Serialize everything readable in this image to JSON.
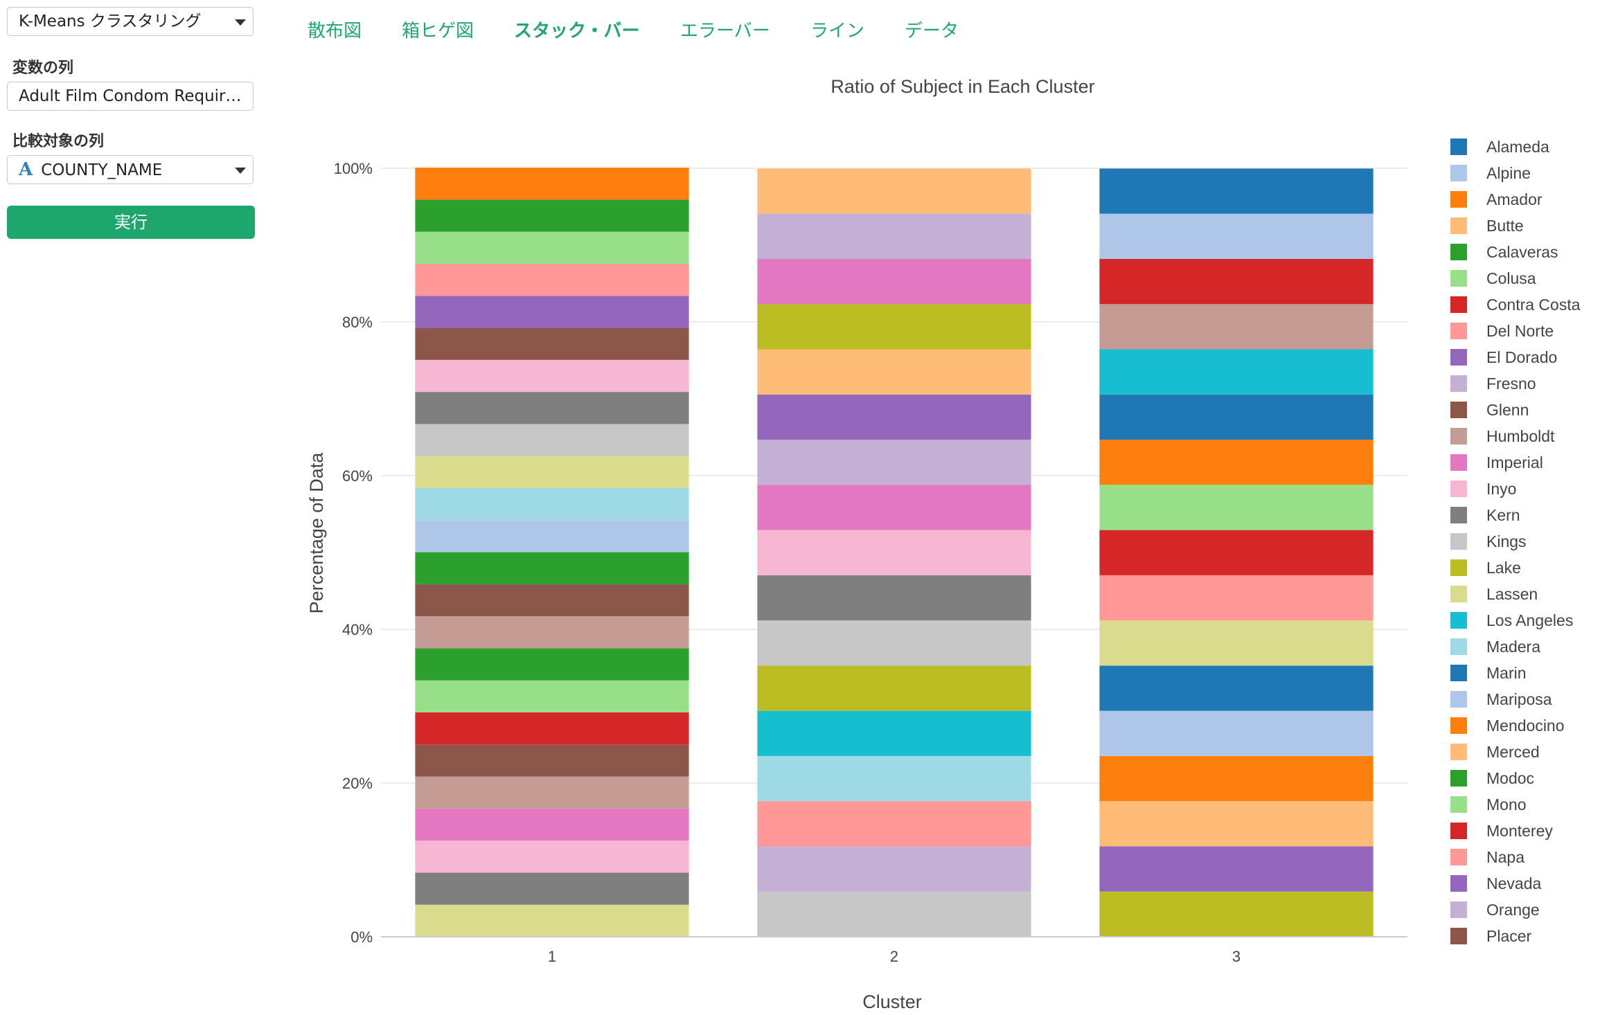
{
  "sidebar": {
    "algorithm_select": "K-Means クラスタリング",
    "variable_label": "変数の列",
    "variable_value": "Adult Film Condom Requir…",
    "compare_label": "比較対象の列",
    "compare_icon": "A",
    "compare_value": "COUNTY_NAME",
    "run_label": "実行"
  },
  "tabs": [
    {
      "label": "散布図",
      "active": false
    },
    {
      "label": "箱ヒゲ図",
      "active": false
    },
    {
      "label": "スタック・バー",
      "active": true
    },
    {
      "label": "エラーバー",
      "active": false
    },
    {
      "label": "ライン",
      "active": false
    },
    {
      "label": "データ",
      "active": false
    }
  ],
  "chart_data": {
    "type": "bar",
    "stacked": true,
    "title": "Ratio of Subject in Each Cluster",
    "xlabel": "Cluster",
    "ylabel": "Percentage of Data",
    "categories": [
      "1",
      "2",
      "3"
    ],
    "ylim": [
      0,
      100
    ],
    "yticks": [
      "0%",
      "20%",
      "40%",
      "60%",
      "80%",
      "100%"
    ],
    "grid": true,
    "legend_position": "right",
    "legend": [
      {
        "name": "Alameda",
        "color": "#1f77b4"
      },
      {
        "name": "Alpine",
        "color": "#aec7e8"
      },
      {
        "name": "Amador",
        "color": "#ff7f0e"
      },
      {
        "name": "Butte",
        "color": "#ffbb78"
      },
      {
        "name": "Calaveras",
        "color": "#2ca02c"
      },
      {
        "name": "Colusa",
        "color": "#98df8a"
      },
      {
        "name": "Contra Costa",
        "color": "#d62728"
      },
      {
        "name": "Del Norte",
        "color": "#ff9896"
      },
      {
        "name": "El Dorado",
        "color": "#9467bd"
      },
      {
        "name": "Fresno",
        "color": "#c5b0d5"
      },
      {
        "name": "Glenn",
        "color": "#8c564b"
      },
      {
        "name": "Humboldt",
        "color": "#c49c94"
      },
      {
        "name": "Imperial",
        "color": "#e377c2"
      },
      {
        "name": "Inyo",
        "color": "#f7b6d2"
      },
      {
        "name": "Kern",
        "color": "#7f7f7f"
      },
      {
        "name": "Kings",
        "color": "#c7c7c7"
      },
      {
        "name": "Lake",
        "color": "#bcbd22"
      },
      {
        "name": "Lassen",
        "color": "#dbdb8d"
      },
      {
        "name": "Los Angeles",
        "color": "#17becf"
      },
      {
        "name": "Madera",
        "color": "#9edae5"
      },
      {
        "name": "Marin",
        "color": "#1f77b4"
      },
      {
        "name": "Mariposa",
        "color": "#aec7e8"
      },
      {
        "name": "Mendocino",
        "color": "#ff7f0e"
      },
      {
        "name": "Merced",
        "color": "#ffbb78"
      },
      {
        "name": "Modoc",
        "color": "#2ca02c"
      },
      {
        "name": "Mono",
        "color": "#98df8a"
      },
      {
        "name": "Monterey",
        "color": "#d62728"
      },
      {
        "name": "Napa",
        "color": "#ff9896"
      },
      {
        "name": "Nevada",
        "color": "#9467bd"
      },
      {
        "name": "Orange",
        "color": "#c5b0d5"
      },
      {
        "name": "Placer",
        "color": "#8c564b"
      }
    ],
    "stacks": [
      {
        "category": "1",
        "segments_bottom_to_top": [
          {
            "color": "#dbdb8d",
            "value": 4.17
          },
          {
            "color": "#7f7f7f",
            "value": 4.17
          },
          {
            "color": "#f7b6d2",
            "value": 4.17
          },
          {
            "color": "#e377c2",
            "value": 4.17
          },
          {
            "color": "#c49c94",
            "value": 4.17
          },
          {
            "color": "#8c564b",
            "value": 4.17
          },
          {
            "color": "#d62728",
            "value": 4.17
          },
          {
            "color": "#98df8a",
            "value": 4.17
          },
          {
            "color": "#2ca02c",
            "value": 4.17
          },
          {
            "color": "#c49c94",
            "value": 4.17
          },
          {
            "color": "#8c564b",
            "value": 4.17
          },
          {
            "color": "#2ca02c",
            "value": 4.17
          },
          {
            "color": "#aec7e8",
            "value": 4.17
          },
          {
            "color": "#9edae5",
            "value": 4.17
          },
          {
            "color": "#dbdb8d",
            "value": 4.17
          },
          {
            "color": "#c7c7c7",
            "value": 4.17
          },
          {
            "color": "#7f7f7f",
            "value": 4.17
          },
          {
            "color": "#f7b6d2",
            "value": 4.17
          },
          {
            "color": "#8c564b",
            "value": 4.17
          },
          {
            "color": "#9467bd",
            "value": 4.17
          },
          {
            "color": "#ff9896",
            "value": 4.17
          },
          {
            "color": "#98df8a",
            "value": 4.17
          },
          {
            "color": "#2ca02c",
            "value": 4.17
          },
          {
            "color": "#ff7f0e",
            "value": 4.17
          }
        ]
      },
      {
        "category": "2",
        "segments_bottom_to_top": [
          {
            "color": "#c7c7c7",
            "value": 5.88
          },
          {
            "color": "#c5b0d5",
            "value": 5.88
          },
          {
            "color": "#ff9896",
            "value": 5.88
          },
          {
            "color": "#9edae5",
            "value": 5.88
          },
          {
            "color": "#17becf",
            "value": 5.88
          },
          {
            "color": "#bcbd22",
            "value": 5.88
          },
          {
            "color": "#c7c7c7",
            "value": 5.88
          },
          {
            "color": "#7f7f7f",
            "value": 5.88
          },
          {
            "color": "#f7b6d2",
            "value": 5.88
          },
          {
            "color": "#e377c2",
            "value": 5.88
          },
          {
            "color": "#c5b0d5",
            "value": 5.88
          },
          {
            "color": "#9467bd",
            "value": 5.88
          },
          {
            "color": "#ffbb78",
            "value": 5.88
          },
          {
            "color": "#bcbd22",
            "value": 5.88
          },
          {
            "color": "#e377c2",
            "value": 5.88
          },
          {
            "color": "#c5b0d5",
            "value": 5.88
          },
          {
            "color": "#ffbb78",
            "value": 5.88
          }
        ]
      },
      {
        "category": "3",
        "segments_bottom_to_top": [
          {
            "color": "#bcbd22",
            "value": 5.88
          },
          {
            "color": "#9467bd",
            "value": 5.88
          },
          {
            "color": "#ffbb78",
            "value": 5.88
          },
          {
            "color": "#ff7f0e",
            "value": 5.88
          },
          {
            "color": "#aec7e8",
            "value": 5.88
          },
          {
            "color": "#1f77b4",
            "value": 5.88
          },
          {
            "color": "#dbdb8d",
            "value": 5.88
          },
          {
            "color": "#ff9896",
            "value": 5.88
          },
          {
            "color": "#d62728",
            "value": 5.88
          },
          {
            "color": "#98df8a",
            "value": 5.88
          },
          {
            "color": "#ff7f0e",
            "value": 5.88
          },
          {
            "color": "#1f77b4",
            "value": 5.88
          },
          {
            "color": "#17becf",
            "value": 5.88
          },
          {
            "color": "#c49c94",
            "value": 5.88
          },
          {
            "color": "#d62728",
            "value": 5.88
          },
          {
            "color": "#aec7e8",
            "value": 5.88
          },
          {
            "color": "#1f77b4",
            "value": 5.88
          }
        ]
      }
    ]
  }
}
